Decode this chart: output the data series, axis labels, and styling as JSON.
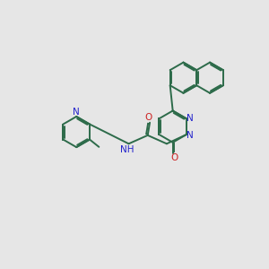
{
  "bg_color": "#e6e6e6",
  "bond_color": "#2d6b4a",
  "n_color": "#2222cc",
  "o_color": "#cc2222",
  "lw": 1.4,
  "figsize": [
    3.0,
    3.0
  ],
  "dpi": 100,
  "xlim": [
    0,
    10
  ],
  "ylim": [
    0,
    10
  ]
}
